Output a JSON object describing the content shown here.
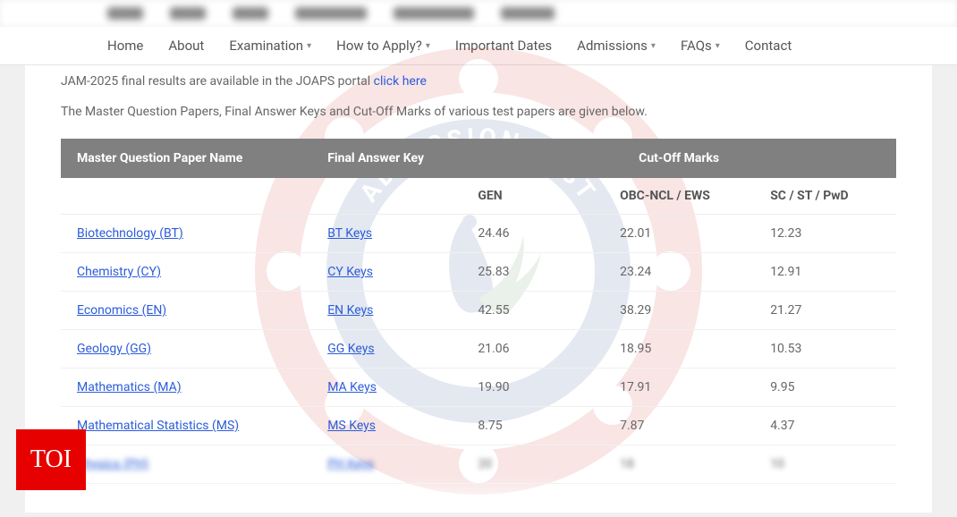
{
  "nav": {
    "items": [
      {
        "label": "Home",
        "dropdown": false
      },
      {
        "label": "About",
        "dropdown": false
      },
      {
        "label": "Examination",
        "dropdown": true
      },
      {
        "label": "How to Apply?",
        "dropdown": true
      },
      {
        "label": "Important Dates",
        "dropdown": false
      },
      {
        "label": "Admissions",
        "dropdown": true
      },
      {
        "label": "FAQs",
        "dropdown": true
      },
      {
        "label": "Contact",
        "dropdown": false
      }
    ]
  },
  "notice": {
    "text": "JAM-2025 final results are available in the JOAPS portal ",
    "link_text": "click here"
  },
  "description": "The Master Question Papers, Final Answer Keys and Cut-Off Marks of various test papers are given below.",
  "table": {
    "head1": {
      "paper": "Master Question Paper Name",
      "key": "Final Answer Key",
      "cutoff": "Cut-Off Marks"
    },
    "head2": {
      "gen": "GEN",
      "obc": "OBC-NCL / EWS",
      "sc": "SC / ST / PwD"
    },
    "rows": [
      {
        "paper": "Biotechnology (BT)",
        "key": "BT Keys",
        "gen": "24.46",
        "obc": "22.01",
        "sc": "12.23"
      },
      {
        "paper": "Chemistry (CY)",
        "key": "CY Keys",
        "gen": "25.83",
        "obc": "23.24",
        "sc": "12.91"
      },
      {
        "paper": "Economics (EN)",
        "key": "EN Keys",
        "gen": "42.55",
        "obc": "38.29",
        "sc": "21.27"
      },
      {
        "paper": "Geology (GG)",
        "key": "GG Keys",
        "gen": "21.06",
        "obc": "18.95",
        "sc": "10.53"
      },
      {
        "paper": "Mathematics (MA)",
        "key": "MA Keys",
        "gen": "19.90",
        "obc": "17.91",
        "sc": "9.95"
      },
      {
        "paper": "Mathematical Statistics (MS)",
        "key": "MS Keys",
        "gen": "8.75",
        "obc": "7.87",
        "sc": "4.37"
      }
    ],
    "blur_row": {
      "paper": "Physics (PH)",
      "key": "PH Keys",
      "gen": "20",
      "obc": "18",
      "sc": "10"
    }
  },
  "badge": {
    "text": "TOI"
  },
  "colors": {
    "header_bg": "#808080",
    "link": "#2b5cd9",
    "badge_bg": "#e60000",
    "text_muted": "#666666"
  },
  "emblem": {
    "outer_color": "#d4352a",
    "inner_color": "#2a4d8f",
    "text_color": "#ffffff"
  }
}
